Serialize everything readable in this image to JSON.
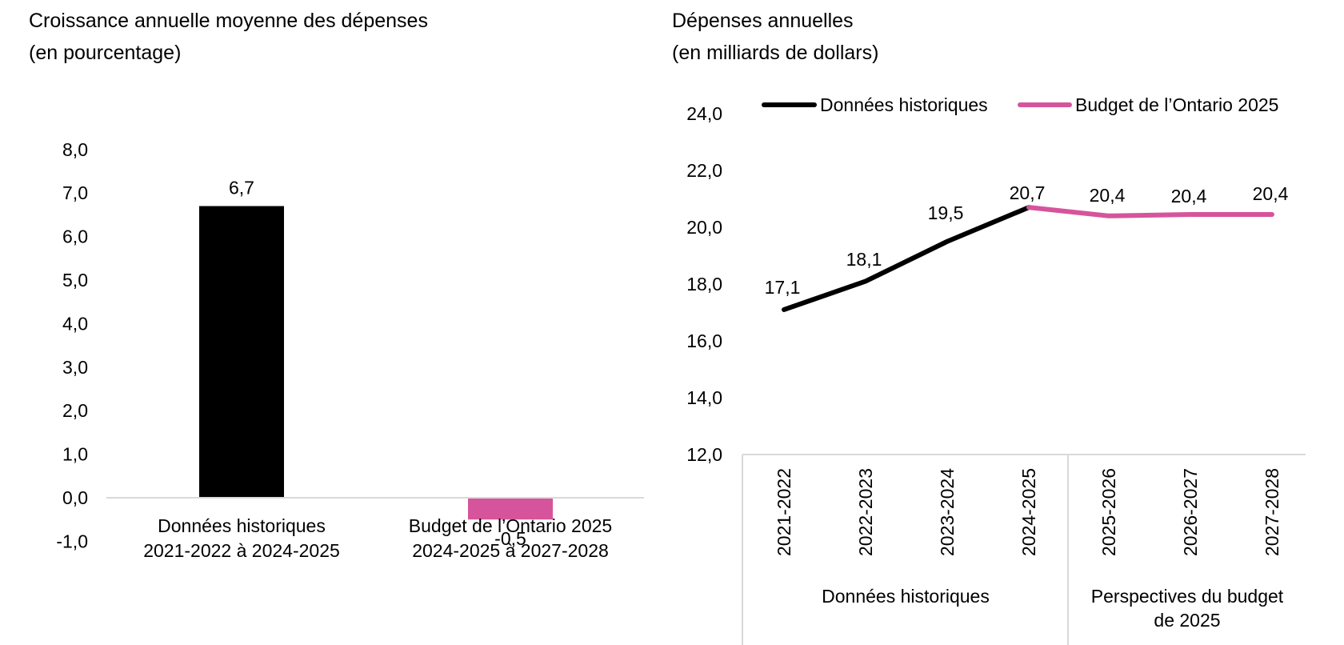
{
  "chart_data": [
    {
      "type": "bar",
      "title": [
        "Croissance annuelle moyenne des dépenses",
        "(en pourcentage)"
      ],
      "categories": [
        [
          "Données historiques",
          "2021-2022 à 2024-2025"
        ],
        [
          "Budget de l’Ontario 2025",
          "2024-2025 à 2027-2028"
        ]
      ],
      "values": [
        6.7,
        -0.5
      ],
      "value_labels": [
        "6,7",
        "-0,5"
      ],
      "bar_colors": [
        "#000000",
        "#d6549b"
      ],
      "label_colors": [
        "#000000",
        "#e8352b"
      ],
      "ylim": [
        -1.0,
        8.0
      ],
      "yticks": [
        "-1,0",
        "0,0",
        "1,0",
        "2,0",
        "3,0",
        "4,0",
        "5,0",
        "6,0",
        "7,0",
        "8,0"
      ],
      "grid": false
    },
    {
      "type": "line",
      "title": [
        "Dépenses annuelles",
        "(en milliards de dollars)"
      ],
      "categories": [
        "2021-2022",
        "2022-2023",
        "2023-2024",
        "2024-2025",
        "2025-2026",
        "2026-2027",
        "2027-2028"
      ],
      "category_groups": [
        {
          "label": [
            "Données historiques"
          ],
          "count": 4
        },
        {
          "label": [
            "Perspectives du budget",
            "de 2025"
          ],
          "count": 3
        }
      ],
      "series": [
        {
          "name": "Données historiques",
          "color": "#000000",
          "values": [
            17.1,
            18.1,
            19.5,
            20.7,
            null,
            null,
            null
          ]
        },
        {
          "name": "Budget de l’Ontario 2025",
          "color": "#d6549b",
          "values": [
            null,
            null,
            null,
            20.7,
            20.4,
            20.45,
            20.45
          ]
        }
      ],
      "point_labels": [
        "17,1",
        "18,1",
        "19,5",
        "20,7",
        "20,4",
        "20,4",
        "20,4"
      ],
      "ylim": [
        12.0,
        24.0
      ],
      "yticks": [
        "12,0",
        "14,0",
        "16,0",
        "18,0",
        "20,0",
        "22,0",
        "24,0"
      ],
      "legend_position": "top",
      "grid": false
    }
  ]
}
